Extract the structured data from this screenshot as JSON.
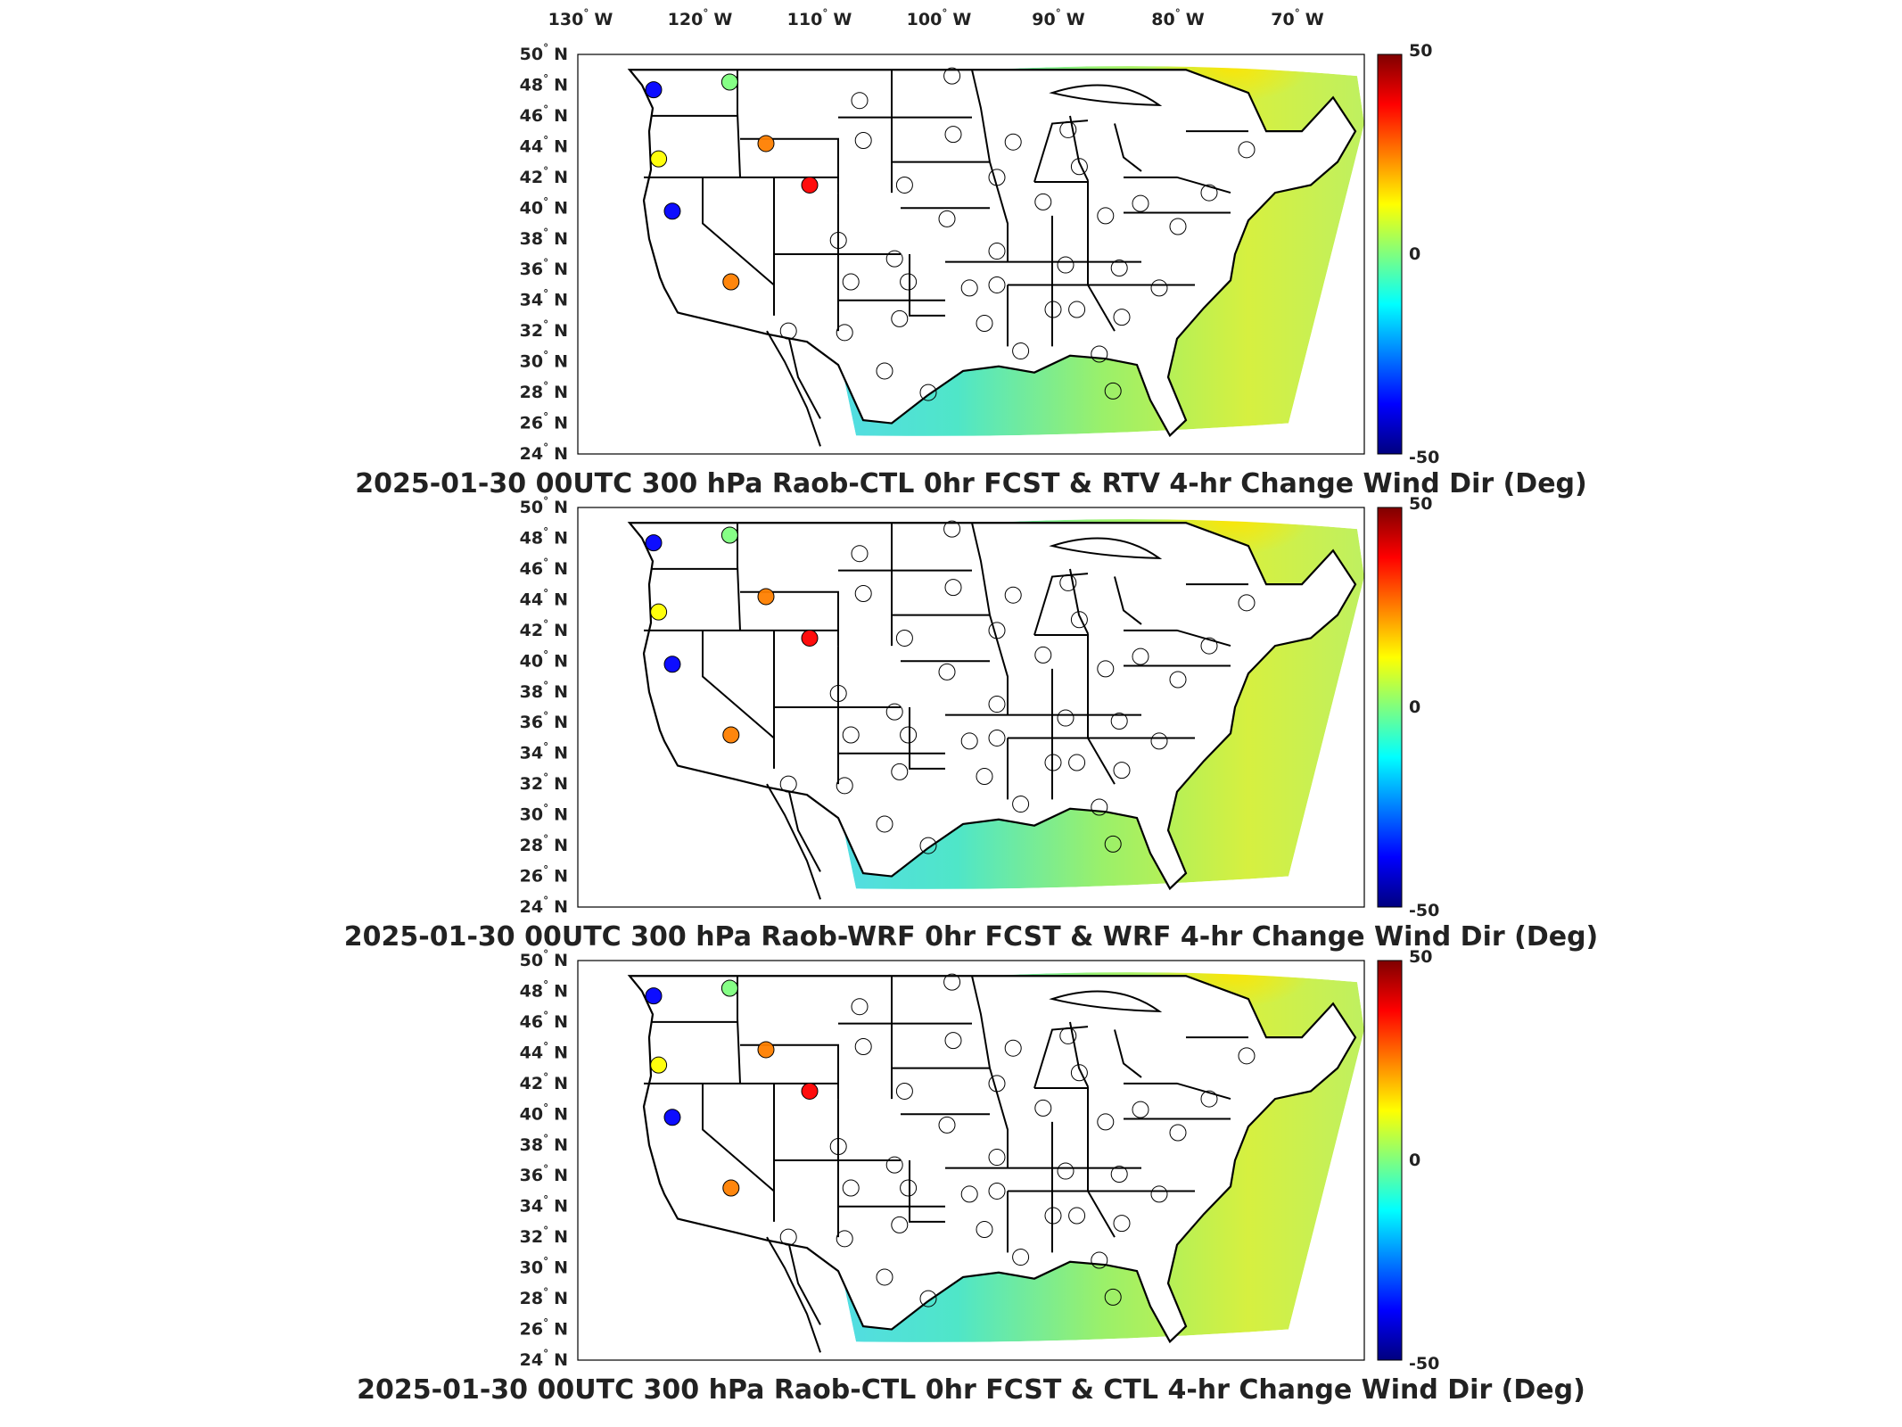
{
  "lon_ticks": [
    {
      "deg": "130",
      "dir": "W"
    },
    {
      "deg": "120",
      "dir": "W"
    },
    {
      "deg": "110",
      "dir": "W"
    },
    {
      "deg": "100",
      "dir": "W"
    },
    {
      "deg": "90",
      "dir": "W"
    },
    {
      "deg": "80",
      "dir": "W"
    },
    {
      "deg": "70",
      "dir": "W"
    }
  ],
  "lat_ticks": [
    {
      "deg": "50",
      "dir": "N"
    },
    {
      "deg": "48",
      "dir": "N"
    },
    {
      "deg": "46",
      "dir": "N"
    },
    {
      "deg": "44",
      "dir": "N"
    },
    {
      "deg": "42",
      "dir": "N"
    },
    {
      "deg": "40",
      "dir": "N"
    },
    {
      "deg": "38",
      "dir": "N"
    },
    {
      "deg": "36",
      "dir": "N"
    },
    {
      "deg": "34",
      "dir": "N"
    },
    {
      "deg": "32",
      "dir": "N"
    },
    {
      "deg": "30",
      "dir": "N"
    },
    {
      "deg": "28",
      "dir": "N"
    },
    {
      "deg": "26",
      "dir": "N"
    },
    {
      "deg": "24",
      "dir": "N"
    }
  ],
  "colorbar": {
    "ticks": [
      "50",
      "0",
      "-50"
    ],
    "min": -50,
    "max": 50,
    "colormap": [
      "#00007f",
      "#0000ff",
      "#007fff",
      "#00ffff",
      "#7fff7f",
      "#ffff00",
      "#ff7f00",
      "#ff0000",
      "#7f0000"
    ]
  },
  "chart_data": [
    {
      "type": "heatmap",
      "title": "2025-01-30 00UTC 300 hPa Raob-CTL 0hr FCST & RTV 4-hr Change Wind Dir (Deg)",
      "xlim": [
        -135,
        -60
      ],
      "ylim": [
        24,
        50
      ],
      "colorbar_range": [
        -50,
        50
      ]
    },
    {
      "type": "heatmap",
      "title": "2025-01-30 00UTC 300 hPa Raob-WRF 0hr FCST & WRF 4-hr Change Wind Dir (Deg)",
      "xlim": [
        -135,
        -60
      ],
      "ylim": [
        24,
        50
      ],
      "colorbar_range": [
        -50,
        50
      ]
    },
    {
      "type": "heatmap",
      "title": "2025-01-30 00UTC 300 hPa Raob-CTL 0hr FCST & CTL 4-hr Change Wind Dir (Deg)",
      "xlim": [
        -135,
        -60
      ],
      "ylim": [
        24,
        50
      ],
      "colorbar_range": [
        -50,
        50
      ]
    }
  ],
  "stations": [
    {
      "lon": -117.5,
      "lat": 47.7,
      "value": -40
    },
    {
      "lon": -111.4,
      "lat": 48.2,
      "value": -5
    },
    {
      "lon": -117.1,
      "lat": 43.2,
      "value": 10
    },
    {
      "lon": -108.5,
      "lat": 44.2,
      "value": 30
    },
    {
      "lon": -105.0,
      "lat": 41.5,
      "value": 40
    },
    {
      "lon": -116.0,
      "lat": 39.8,
      "value": -35
    },
    {
      "lon": -111.3,
      "lat": 35.2,
      "value": 30
    },
    {
      "lon": -101.0,
      "lat": 47.0,
      "value": 0
    },
    {
      "lon": -100.7,
      "lat": 44.4,
      "value": 0
    },
    {
      "lon": -97.4,
      "lat": 41.5,
      "value": 0
    },
    {
      "lon": -102.7,
      "lat": 37.9,
      "value": 0
    },
    {
      "lon": -98.2,
      "lat": 36.7,
      "value": 0
    },
    {
      "lon": -101.7,
      "lat": 35.2,
      "value": 0
    },
    {
      "lon": -97.1,
      "lat": 35.2,
      "value": 0
    },
    {
      "lon": -97.8,
      "lat": 32.8,
      "value": 0
    },
    {
      "lon": -106.7,
      "lat": 32.0,
      "value": 0
    },
    {
      "lon": -102.2,
      "lat": 31.9,
      "value": 0
    },
    {
      "lon": -99.0,
      "lat": 29.4,
      "value": 0
    },
    {
      "lon": -95.5,
      "lat": 28.0,
      "value": 0
    },
    {
      "lon": -93.6,
      "lat": 48.6,
      "value": 0
    },
    {
      "lon": -93.5,
      "lat": 44.8,
      "value": 0
    },
    {
      "lon": -90.0,
      "lat": 42.0,
      "value": 0
    },
    {
      "lon": -94.0,
      "lat": 39.3,
      "value": 0
    },
    {
      "lon": -90.0,
      "lat": 37.2,
      "value": 0
    },
    {
      "lon": -92.2,
      "lat": 34.8,
      "value": 0
    },
    {
      "lon": -91.0,
      "lat": 32.5,
      "value": 0
    },
    {
      "lon": -88.7,
      "lat": 44.3,
      "value": 0
    },
    {
      "lon": -86.3,
      "lat": 40.4,
      "value": 0
    },
    {
      "lon": -84.3,
      "lat": 45.1,
      "value": 0
    },
    {
      "lon": -83.4,
      "lat": 42.7,
      "value": 0
    },
    {
      "lon": -81.3,
      "lat": 39.5,
      "value": 0
    },
    {
      "lon": -78.5,
      "lat": 40.3,
      "value": 0
    },
    {
      "lon": -84.5,
      "lat": 36.3,
      "value": 0
    },
    {
      "lon": -80.2,
      "lat": 36.1,
      "value": 0
    },
    {
      "lon": -85.5,
      "lat": 33.4,
      "value": 0
    },
    {
      "lon": -83.6,
      "lat": 33.4,
      "value": 0
    },
    {
      "lon": -80.0,
      "lat": 32.9,
      "value": 0
    },
    {
      "lon": -77.0,
      "lat": 34.8,
      "value": 0
    },
    {
      "lon": -81.8,
      "lat": 30.5,
      "value": 0
    },
    {
      "lon": -80.7,
      "lat": 28.1,
      "value": 0
    },
    {
      "lon": -75.5,
      "lat": 38.8,
      "value": 0
    },
    {
      "lon": -73.0,
      "lat": 41.0,
      "value": 0
    },
    {
      "lon": -70.0,
      "lat": 43.8,
      "value": 0
    },
    {
      "lon": -88.1,
      "lat": 30.7,
      "value": 0
    },
    {
      "lon": -90.0,
      "lat": 35.0,
      "value": 0
    }
  ]
}
